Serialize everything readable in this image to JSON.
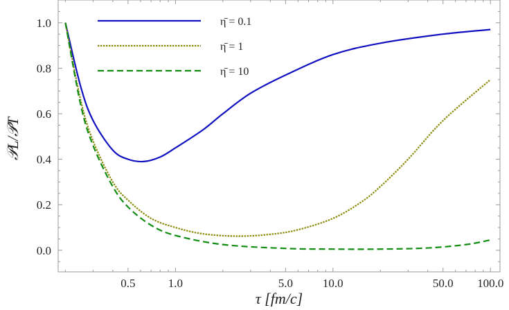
{
  "chart_data": {
    "type": "line",
    "xlabel": "τ [fm/c]",
    "ylabel": "𝒫L/𝒫T",
    "x_scale": "log",
    "xlim": [
      0.18,
      115
    ],
    "ylim": [
      -0.095,
      1.1
    ],
    "x_ticks": [
      0.5,
      1.0,
      5.0,
      10.0,
      50.0,
      100.0
    ],
    "x_tick_labels": [
      "0.5",
      "1.0",
      "5.0",
      "10.0",
      "50.0",
      "100.0"
    ],
    "y_ticks": [
      0.0,
      0.2,
      0.4,
      0.6,
      0.8,
      1.0
    ],
    "y_tick_labels": [
      "0.0",
      "0.2",
      "0.4",
      "0.6",
      "0.8",
      "1.0"
    ],
    "grid": false,
    "legend_placement": "top-left",
    "series": [
      {
        "name": "η̄ = 0.1",
        "color": "#1010c0",
        "style": "solid",
        "x": [
          0.2,
          0.25,
          0.3,
          0.4,
          0.5,
          0.63,
          0.8,
          1,
          1.5,
          2,
          3,
          5,
          10,
          20,
          50,
          100
        ],
        "y": [
          1,
          0.72,
          0.57,
          0.44,
          0.4,
          0.39,
          0.41,
          0.45,
          0.53,
          0.6,
          0.69,
          0.77,
          0.86,
          0.91,
          0.95,
          0.97
        ]
      },
      {
        "name": "η̄ = 1",
        "color": "#8c8c10",
        "style": "dotted",
        "x": [
          0.2,
          0.25,
          0.3,
          0.4,
          0.5,
          0.7,
          1,
          1.5,
          2.5,
          4,
          6,
          10,
          15,
          20,
          30,
          50,
          100
        ],
        "y": [
          1,
          0.66,
          0.48,
          0.3,
          0.22,
          0.14,
          0.1,
          0.072,
          0.062,
          0.07,
          0.09,
          0.14,
          0.21,
          0.28,
          0.4,
          0.57,
          0.75
        ]
      },
      {
        "name": "η̄ = 10",
        "color": "#108c10",
        "style": "dashed",
        "x": [
          0.2,
          0.25,
          0.3,
          0.4,
          0.5,
          0.7,
          1,
          2,
          5,
          10,
          20,
          40,
          70,
          100
        ],
        "y": [
          1,
          0.64,
          0.46,
          0.28,
          0.19,
          0.11,
          0.065,
          0.025,
          0.008,
          0.005,
          0.005,
          0.01,
          0.025,
          0.045
        ]
      }
    ]
  }
}
